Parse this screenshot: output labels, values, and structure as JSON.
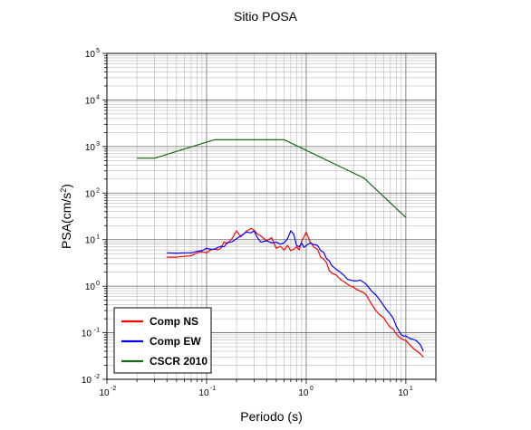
{
  "chart_data": {
    "type": "line",
    "title": "Sitio POSA",
    "xlabel": "Periodo (s)",
    "ylabel": "PSA(cm/s",
    "ylabel_sup": "2",
    "ylabel_end": ")",
    "xscale": "log",
    "yscale": "log",
    "xlim": [
      0.01,
      20
    ],
    "ylim": [
      0.01,
      100000
    ],
    "grid": true,
    "legend_position": "bottom-left",
    "x_ticks": [
      {
        "base": "10",
        "exp": "-2"
      },
      {
        "base": "10",
        "exp": "-1"
      },
      {
        "base": "10",
        "exp": "0"
      },
      {
        "base": "10",
        "exp": "1"
      }
    ],
    "y_ticks": [
      {
        "base": "10",
        "exp": "-2"
      },
      {
        "base": "10",
        "exp": "-1"
      },
      {
        "base": "10",
        "exp": "0"
      },
      {
        "base": "10",
        "exp": "1"
      },
      {
        "base": "10",
        "exp": "2"
      },
      {
        "base": "10",
        "exp": "3"
      },
      {
        "base": "10",
        "exp": "4"
      },
      {
        "base": "10",
        "exp": "5"
      }
    ],
    "series": [
      {
        "name": "Comp NS",
        "color": "#ff0000",
        "x": [
          0.04,
          0.05,
          0.06,
          0.07,
          0.08,
          0.09,
          0.1,
          0.11,
          0.12,
          0.13,
          0.14,
          0.15,
          0.16,
          0.18,
          0.2,
          0.22,
          0.25,
          0.28,
          0.3,
          0.32,
          0.35,
          0.4,
          0.45,
          0.5,
          0.55,
          0.6,
          0.65,
          0.7,
          0.75,
          0.8,
          0.85,
          0.9,
          0.95,
          1.0,
          1.1,
          1.2,
          1.3,
          1.4,
          1.5,
          1.6,
          1.7,
          1.8,
          2.0,
          2.2,
          2.4,
          2.6,
          2.8,
          3.0,
          3.2,
          3.5,
          3.8,
          4.0,
          4.5,
          5.0,
          5.5,
          6.0,
          6.5,
          7.0,
          7.5,
          8.0,
          8.5,
          9.0,
          9.5,
          10.0,
          11.0,
          12.0,
          13.0,
          14.0,
          15.0
        ],
        "values": [
          4.2,
          4.2,
          4.4,
          4.5,
          5.2,
          5.5,
          5.2,
          6.0,
          6.3,
          6.0,
          6.6,
          9.0,
          8.2,
          10.5,
          15.5,
          11.5,
          15.0,
          17.5,
          16.0,
          13.5,
          12.0,
          9.5,
          11.0,
          6.5,
          7.2,
          6.0,
          7.5,
          5.8,
          6.2,
          7.0,
          6.0,
          9.2,
          11.5,
          14.5,
          8.8,
          6.8,
          6.2,
          4.2,
          3.8,
          3.2,
          2.2,
          1.9,
          1.75,
          1.4,
          1.25,
          1.1,
          1.0,
          0.95,
          0.85,
          0.78,
          0.72,
          0.65,
          0.42,
          0.3,
          0.24,
          0.21,
          0.16,
          0.13,
          0.12,
          0.095,
          0.082,
          0.075,
          0.07,
          0.068,
          0.055,
          0.045,
          0.04,
          0.035,
          0.03
        ]
      },
      {
        "name": "Comp EW",
        "color": "#0000ff",
        "x": [
          0.04,
          0.05,
          0.06,
          0.07,
          0.08,
          0.09,
          0.1,
          0.11,
          0.12,
          0.13,
          0.14,
          0.15,
          0.16,
          0.18,
          0.2,
          0.22,
          0.25,
          0.28,
          0.3,
          0.32,
          0.35,
          0.4,
          0.45,
          0.5,
          0.55,
          0.6,
          0.65,
          0.7,
          0.75,
          0.8,
          0.85,
          0.9,
          0.95,
          1.0,
          1.1,
          1.2,
          1.3,
          1.4,
          1.5,
          1.6,
          1.7,
          1.8,
          2.0,
          2.2,
          2.4,
          2.6,
          2.8,
          3.0,
          3.2,
          3.5,
          3.8,
          4.0,
          4.5,
          5.0,
          5.5,
          6.0,
          6.5,
          7.0,
          7.5,
          8.0,
          8.5,
          9.0,
          9.5,
          10.0,
          11.0,
          12.0,
          13.0,
          14.0,
          15.0
        ],
        "values": [
          5.2,
          5.1,
          5.2,
          5.2,
          5.6,
          5.8,
          6.5,
          6.2,
          6.2,
          6.8,
          7.2,
          7.0,
          8.5,
          9.0,
          10.5,
          12.0,
          14.5,
          14.0,
          15.5,
          11.5,
          8.8,
          9.5,
          8.5,
          8.8,
          8.0,
          8.5,
          10.5,
          15.5,
          13.0,
          7.5,
          7.0,
          8.5,
          6.8,
          7.5,
          8.5,
          7.8,
          7.5,
          5.8,
          5.3,
          3.9,
          3.5,
          2.8,
          2.3,
          2.0,
          1.7,
          1.4,
          1.35,
          1.3,
          1.3,
          1.35,
          1.2,
          1.1,
          0.8,
          0.65,
          0.5,
          0.38,
          0.3,
          0.25,
          0.2,
          0.14,
          0.11,
          0.09,
          0.085,
          0.085,
          0.075,
          0.072,
          0.065,
          0.055,
          0.04
        ]
      },
      {
        "name": "CSCR 2010",
        "color": "#1a661a",
        "x": [
          0.02,
          0.03,
          0.12,
          0.6,
          3.8,
          10.0
        ],
        "values": [
          560,
          560,
          1400,
          1400,
          210,
          30
        ]
      }
    ]
  }
}
